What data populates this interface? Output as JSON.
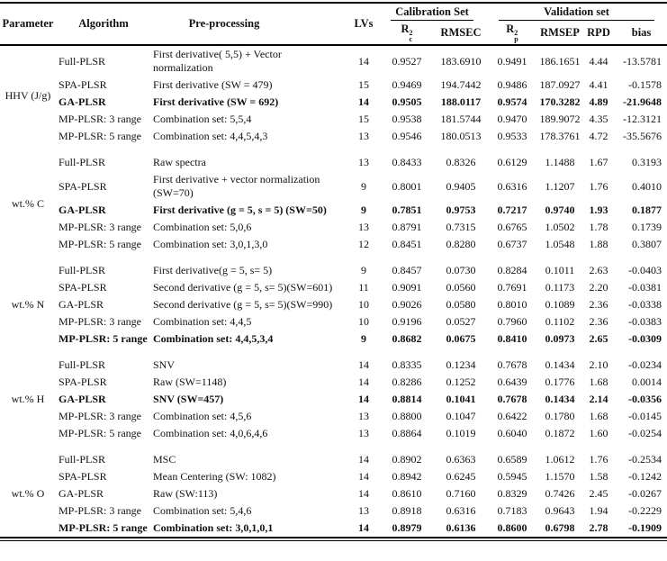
{
  "table": {
    "columns": {
      "parameter": "Parameter",
      "algorithm": "Algorithm",
      "preprocessing": "Pre-processing",
      "lvs": "LVs",
      "calibration_group": "Calibration Set",
      "validation_group": "Validation set",
      "r2c": {
        "base": "R",
        "sup": "2",
        "sub": "c"
      },
      "rmsec": "RMSEC",
      "r2p": {
        "base": "R",
        "sup": "2",
        "sub": "p"
      },
      "rmsep": "RMSEP",
      "rpd": "RPD",
      "bias": "bias"
    },
    "groups": [
      {
        "parameter": "HHV (J/g)",
        "rows": [
          {
            "algorithm": "Full-PLSR",
            "preprocessing": "First derivative( 5,5) + Vector normalization",
            "lvs": "14",
            "r2c": "0.9527",
            "rmsec": "183.6910",
            "r2p": "0.9491",
            "rmsep": "186.1651",
            "rpd": "4.44",
            "bias": "-13.5781",
            "bold": false
          },
          {
            "algorithm": "SPA-PLSR",
            "preprocessing": "First derivative (SW = 479)",
            "lvs": "15",
            "r2c": "0.9469",
            "rmsec": "194.7442",
            "r2p": "0.9486",
            "rmsep": "187.0927",
            "rpd": "4.41",
            "bias": "-0.1578",
            "bold": false
          },
          {
            "algorithm": "GA-PLSR",
            "preprocessing": "First derivative (SW = 692)",
            "lvs": "14",
            "r2c": "0.9505",
            "rmsec": "188.0117",
            "r2p": "0.9574",
            "rmsep": "170.3282",
            "rpd": "4.89",
            "bias": "-21.9648",
            "bold": true
          },
          {
            "algorithm": "MP-PLSR: 3 range",
            "preprocessing": "Combination set: 5,5,4",
            "lvs": "15",
            "r2c": "0.9538",
            "rmsec": "181.5744",
            "r2p": "0.9470",
            "rmsep": "189.9072",
            "rpd": "4.35",
            "bias": "-12.3121",
            "bold": false
          },
          {
            "algorithm": "MP-PLSR: 5 range",
            "preprocessing": "Combination set: 4,4,5,4,3",
            "lvs": "13",
            "r2c": "0.9546",
            "rmsec": "180.0513",
            "r2p": "0.9533",
            "rmsep": "178.3761",
            "rpd": "4.72",
            "bias": "-35.5676",
            "bold": false
          }
        ]
      },
      {
        "parameter": "wt.% C",
        "rows": [
          {
            "algorithm": "Full-PLSR",
            "preprocessing": "Raw spectra",
            "lvs": "13",
            "r2c": "0.8433",
            "rmsec": "0.8326",
            "r2p": "0.6129",
            "rmsep": "1.1488",
            "rpd": "1.67",
            "bias": "0.3193",
            "bold": false
          },
          {
            "algorithm": "SPA-PLSR",
            "preprocessing": "First derivative + vector normalization (SW=70)",
            "lvs": "9",
            "r2c": "0.8001",
            "rmsec": "0.9405",
            "r2p": "0.6316",
            "rmsep": "1.1207",
            "rpd": "1.76",
            "bias": "0.4010",
            "bold": false
          },
          {
            "algorithm": "GA-PLSR",
            "preprocessing": "First derivative (g = 5, s = 5) (SW=50)",
            "lvs": "9",
            "r2c": "0.7851",
            "rmsec": "0.9753",
            "r2p": "0.7217",
            "rmsep": "0.9740",
            "rpd": "1.93",
            "bias": "0.1877",
            "bold": true
          },
          {
            "algorithm": "MP-PLSR: 3 range",
            "preprocessing": "Combination set: 5,0,6",
            "lvs": "13",
            "r2c": "0.8791",
            "rmsec": "0.7315",
            "r2p": "0.6765",
            "rmsep": "1.0502",
            "rpd": "1.78",
            "bias": "0.1739",
            "bold": false
          },
          {
            "algorithm": "MP-PLSR: 5 range",
            "preprocessing": "Combination set: 3,0,1,3,0",
            "lvs": "12",
            "r2c": "0.8451",
            "rmsec": "0.8280",
            "r2p": "0.6737",
            "rmsep": "1.0548",
            "rpd": "1.88",
            "bias": "0.3807",
            "bold": false
          }
        ]
      },
      {
        "parameter": "wt.% N",
        "rows": [
          {
            "algorithm": "Full-PLSR",
            "preprocessing": "First derivative(g = 5, s= 5)",
            "lvs": "9",
            "r2c": "0.8457",
            "rmsec": "0.0730",
            "r2p": "0.8284",
            "rmsep": "0.1011",
            "rpd": "2.63",
            "bias": "-0.0403",
            "bold": false
          },
          {
            "algorithm": "SPA-PLSR",
            "preprocessing": "Second derivative (g = 5, s= 5)(SW=601)",
            "lvs": "11",
            "r2c": "0.9091",
            "rmsec": "0.0560",
            "r2p": "0.7691",
            "rmsep": "0.1173",
            "rpd": "2.20",
            "bias": "-0.0381",
            "bold": false
          },
          {
            "algorithm": "GA-PLSR",
            "preprocessing": "Second derivative (g = 5, s= 5)(SW=990)",
            "lvs": "10",
            "r2c": "0.9026",
            "rmsec": "0.0580",
            "r2p": "0.8010",
            "rmsep": "0.1089",
            "rpd": "2.36",
            "bias": "-0.0338",
            "bold": false
          },
          {
            "algorithm": "MP-PLSR: 3 range",
            "preprocessing": "Combination set: 4,4,5",
            "lvs": "10",
            "r2c": "0.9196",
            "rmsec": "0.0527",
            "r2p": "0.7960",
            "rmsep": "0.1102",
            "rpd": "2.36",
            "bias": "-0.0383",
            "bold": false
          },
          {
            "algorithm": "MP-PLSR: 5 range",
            "preprocessing": "Combination set: 4,4,5,3,4",
            "lvs": "9",
            "r2c": "0.8682",
            "rmsec": "0.0675",
            "r2p": "0.8410",
            "rmsep": "0.0973",
            "rpd": "2.65",
            "bias": "-0.0309",
            "bold": true
          }
        ]
      },
      {
        "parameter": "wt.% H",
        "rows": [
          {
            "algorithm": "Full-PLSR",
            "preprocessing": "SNV",
            "lvs": "14",
            "r2c": "0.8335",
            "rmsec": "0.1234",
            "r2p": "0.7678",
            "rmsep": "0.1434",
            "rpd": "2.10",
            "bias": "-0.0234",
            "bold": false
          },
          {
            "algorithm": "SPA-PLSR",
            "preprocessing": "Raw (SW=1148)",
            "lvs": "14",
            "r2c": "0.8286",
            "rmsec": "0.1252",
            "r2p": "0.6439",
            "rmsep": "0.1776",
            "rpd": "1.68",
            "bias": "0.0014",
            "bold": false
          },
          {
            "algorithm": "GA-PLSR",
            "preprocessing": "SNV (SW=457)",
            "lvs": "14",
            "r2c": "0.8814",
            "rmsec": "0.1041",
            "r2p": "0.7678",
            "rmsep": "0.1434",
            "rpd": "2.14",
            "bias": "-0.0356",
            "bold": true
          },
          {
            "algorithm": "MP-PLSR: 3 range",
            "preprocessing": "Combination set: 4,5,6",
            "lvs": "13",
            "r2c": "0.8800",
            "rmsec": "0.1047",
            "r2p": "0.6422",
            "rmsep": "0.1780",
            "rpd": "1.68",
            "bias": "-0.0145",
            "bold": false
          },
          {
            "algorithm": "MP-PLSR: 5 range",
            "preprocessing": "Combination set: 4,0,6,4,6",
            "lvs": "13",
            "r2c": "0.8864",
            "rmsec": "0.1019",
            "r2p": "0.6040",
            "rmsep": "0.1872",
            "rpd": "1.60",
            "bias": "-0.0254",
            "bold": false
          }
        ]
      },
      {
        "parameter": "wt.% O",
        "rows": [
          {
            "algorithm": "Full-PLSR",
            "preprocessing": "MSC",
            "lvs": "14",
            "r2c": "0.8902",
            "rmsec": "0.6363",
            "r2p": "0.6589",
            "rmsep": "1.0612",
            "rpd": "1.76",
            "bias": "-0.2534",
            "bold": false
          },
          {
            "algorithm": "SPA-PLSR",
            "preprocessing": "Mean Centering (SW: 1082)",
            "lvs": "14",
            "r2c": "0.8942",
            "rmsec": "0.6245",
            "r2p": "0.5945",
            "rmsep": "1.1570",
            "rpd": "1.58",
            "bias": "-0.1242",
            "bold": false
          },
          {
            "algorithm": "GA-PLSR",
            "preprocessing": "Raw (SW:113)",
            "lvs": "14",
            "r2c": "0.8610",
            "rmsec": "0.7160",
            "r2p": "0.8329",
            "rmsep": "0.7426",
            "rpd": "2.45",
            "bias": "-0.0267",
            "bold": false
          },
          {
            "algorithm": "MP-PLSR: 3 range",
            "preprocessing": "Combination set: 5,4,6",
            "lvs": "13",
            "r2c": "0.8918",
            "rmsec": "0.6316",
            "r2p": "0.7183",
            "rmsep": "0.9643",
            "rpd": "1.94",
            "bias": "-0.2229",
            "bold": false
          },
          {
            "algorithm": "MP-PLSR: 5 range",
            "preprocessing": "Combination set: 3,0,1,0,1",
            "lvs": "14",
            "r2c": "0.8979",
            "rmsec": "0.6136",
            "r2p": "0.8600",
            "rmsep": "0.6798",
            "rpd": "2.78",
            "bias": "-0.1909",
            "bold": true
          }
        ]
      }
    ]
  }
}
